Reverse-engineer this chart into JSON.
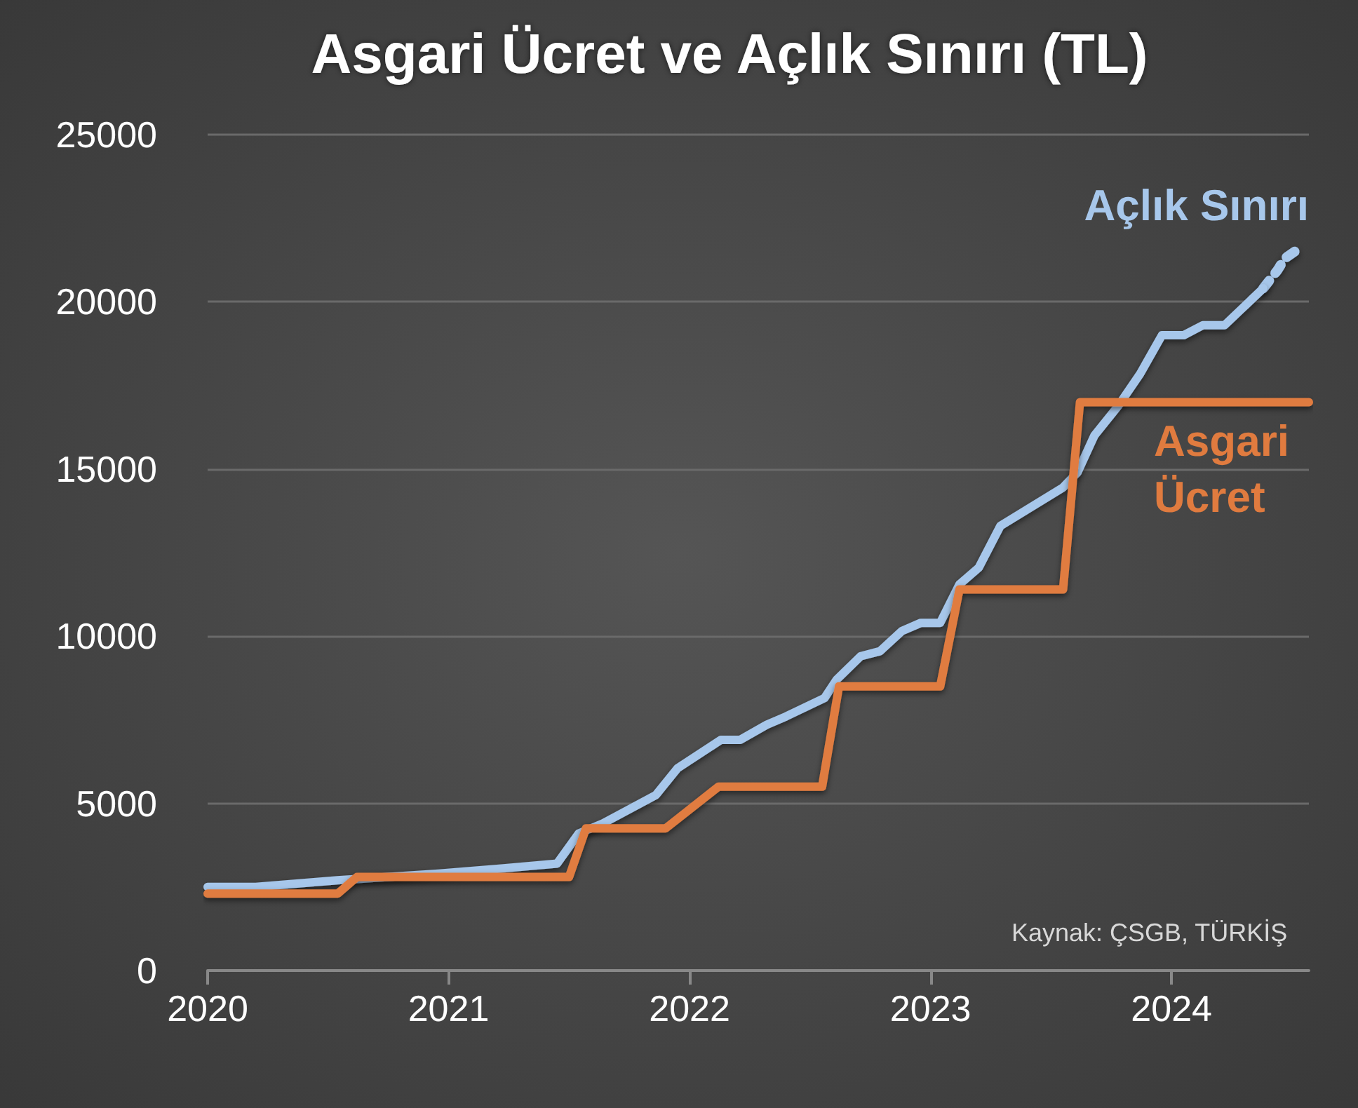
{
  "chart_data": {
    "type": "line",
    "title": "Asgari Ücret ve Açlık Sınırı (TL)",
    "series": [
      {
        "name": "Açlık Sınırı",
        "color": "#a7c7eb",
        "x": [
          2020.0,
          2020.2,
          2020.54,
          2020.96,
          2021.22,
          2021.45,
          2021.54,
          2021.64,
          2021.86,
          2021.95,
          2022.13,
          2022.21,
          2022.32,
          2022.4,
          2022.56,
          2022.61,
          2022.71,
          2022.79,
          2022.88,
          2022.96,
          2023.04,
          2023.12,
          2023.2,
          2023.29,
          2023.55,
          2023.61,
          2023.68,
          2023.78,
          2023.87,
          2023.96,
          2024.05,
          2024.13,
          2024.22,
          2024.38
        ],
        "values": [
          2500,
          2500,
          2700,
          2900,
          3050,
          3200,
          4100,
          4400,
          5250,
          6050,
          6900,
          6900,
          7350,
          7600,
          8150,
          8700,
          9400,
          9550,
          10150,
          10400,
          10400,
          11550,
          12050,
          13300,
          14450,
          14900,
          16000,
          16900,
          17850,
          19000,
          19000,
          19300,
          19300,
          20400
        ]
      },
      {
        "color": "#a7c7eb",
        "line_style": "dotted",
        "x": [
          2024.38,
          2024.44,
          2024.47,
          2024.53
        ],
        "values": [
          20400,
          20950,
          21300,
          21600
        ]
      },
      {
        "name": "Asgari Ücret",
        "color": "#e07b3f",
        "x": [
          2020.0,
          2020.54,
          2020.62,
          2021.5,
          2021.57,
          2021.9,
          2022.12,
          2022.55,
          2022.62,
          2023.04,
          2023.12,
          2023.55,
          2023.62,
          2024.57
        ],
        "values": [
          2300,
          2300,
          2800,
          2800,
          4250,
          4250,
          5500,
          5500,
          8500,
          8500,
          11400,
          11400,
          17000,
          17000
        ]
      }
    ],
    "xlim": [
      2020,
      2024.57
    ],
    "xticks": [
      2020,
      2021,
      2022,
      2023,
      2024
    ],
    "ylim": [
      0,
      25000
    ],
    "yticks": [
      0,
      5000,
      10000,
      15000,
      20000,
      25000
    ],
    "grid": "y",
    "marker": "none",
    "line_style": "solid",
    "legend": false,
    "annotations": [
      "Kaynak: ÇSGB, TÜRKİŞ"
    ]
  }
}
